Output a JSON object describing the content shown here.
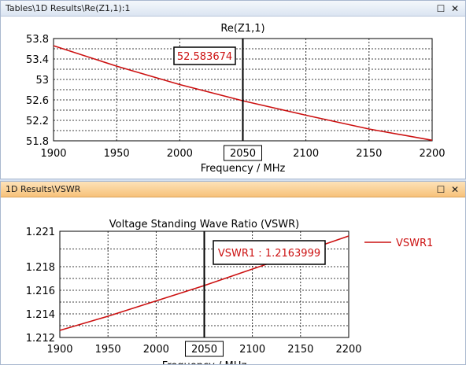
{
  "panels": [
    {
      "window_title": "Tables\\1D Results\\Re(Z1,1):1",
      "controls": {
        "maximize_icon": "maximize-icon",
        "close_icon": "close-icon"
      }
    },
    {
      "window_title": "1D Results\\VSWR",
      "controls": {
        "maximize_icon": "maximize-icon",
        "close_icon": "close-icon"
      }
    }
  ],
  "colors": {
    "curve": "#cc1111",
    "marker": "#000000",
    "grid": "#000000"
  },
  "chart_data": [
    {
      "type": "line",
      "title": "Re(Z1,1)",
      "xlabel": "Frequency / MHz",
      "ylabel": "",
      "xlim": [
        1900,
        2200
      ],
      "ylim": [
        51.8,
        53.8
      ],
      "x_ticks": [
        "1900",
        "1950",
        "2000",
        "2050",
        "2100",
        "2150",
        "2200"
      ],
      "y_ticks": [
        "51.8",
        "52.2",
        "52.6",
        "53",
        "53.4",
        "53.8"
      ],
      "grid": true,
      "series": [
        {
          "x": [
            1900,
            1950,
            2000,
            2050,
            2100,
            2150,
            2200
          ],
          "y": [
            53.66,
            53.26,
            52.9,
            52.583674,
            52.3,
            52.03,
            51.81
          ]
        }
      ],
      "marker": {
        "x": 2050,
        "label": "52.583674"
      }
    },
    {
      "type": "line",
      "title": "Voltage Standing Wave Ratio (VSWR)",
      "xlabel": "Frequency / MHz",
      "ylabel": "",
      "xlim": [
        1900,
        2200
      ],
      "ylim": [
        1.212,
        1.221
      ],
      "x_ticks": [
        "1900",
        "1950",
        "2000",
        "2050",
        "2100",
        "2150",
        "2200"
      ],
      "y_ticks": [
        "1.212",
        "1.214",
        "1.216",
        "1.218",
        "1.221"
      ],
      "grid": true,
      "legend": {
        "placement": "top-right",
        "entries": [
          "VSWR1"
        ]
      },
      "series": [
        {
          "name": "VSWR1",
          "x": [
            1900,
            1950,
            2000,
            2050,
            2100,
            2150,
            2200
          ],
          "y": [
            1.2126,
            1.2138,
            1.2151,
            1.2163999,
            1.2178,
            1.2192,
            1.2206
          ]
        }
      ],
      "marker": {
        "x": 2050,
        "label": "VSWR1 : 1.2163999"
      }
    }
  ]
}
